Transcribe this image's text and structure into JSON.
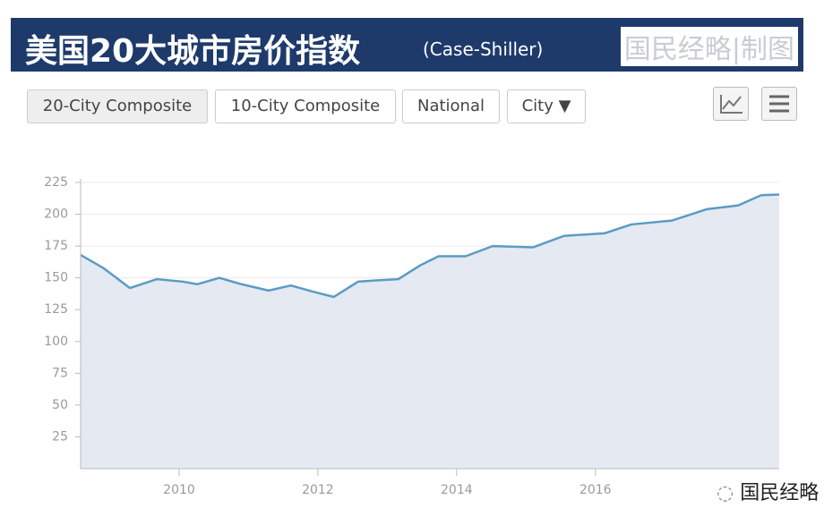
{
  "header": {
    "title": "美国20大城市房价指数",
    "subtitle": "(Case-Shiller)",
    "credit": "国民经略|制图"
  },
  "buttons": [
    "20-City Composite",
    "10-City Composite",
    "National",
    "City ▼"
  ],
  "watermark": "国民经略",
  "chart_data": {
    "type": "area",
    "color": "#5b9bc4",
    "fill": "#e5e9f1",
    "x": [
      2008.58,
      2008.9,
      2009.29,
      2009.68,
      2010.06,
      2010.26,
      2010.58,
      2010.9,
      2011.29,
      2011.61,
      2011.94,
      2012.23,
      2012.58,
      2012.84,
      2013.16,
      2013.48,
      2013.74,
      2014.13,
      2014.52,
      2015.1,
      2015.55,
      2016.13,
      2016.52,
      2017.1,
      2017.61,
      2018.06,
      2018.39,
      2018.65
    ],
    "values": [
      168,
      158,
      142,
      149,
      147,
      145,
      150,
      145,
      140,
      144,
      139,
      135,
      147,
      148,
      149,
      160,
      167,
      167,
      175,
      174,
      183,
      185,
      192,
      195,
      204,
      207,
      215,
      215.5
    ],
    "xlim": [
      2008.58,
      2018.65
    ],
    "xticks": [
      2010,
      2012,
      2014,
      2016
    ],
    "ylim": [
      0,
      225
    ],
    "yticks": [
      25,
      50,
      75,
      100,
      125,
      150,
      175,
      200,
      225
    ],
    "grid": true
  }
}
